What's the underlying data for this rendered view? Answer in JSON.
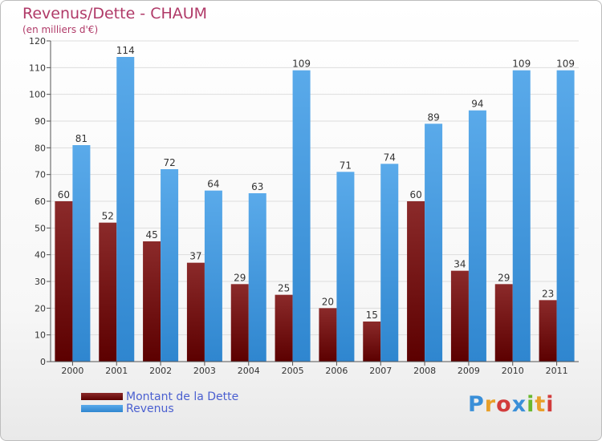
{
  "header": {
    "title": "Revenus/Dette - CHAUM",
    "subtitle": "(en milliers d'€)"
  },
  "legend": {
    "debt_label": "Montant de la Dette",
    "revenue_label": "Revenus"
  },
  "logo": {
    "text": "Proxiti"
  },
  "colors": {
    "debt_top": "#8b2a2a",
    "debt_bottom": "#5c0000",
    "revenue_top": "#5aaaea",
    "revenue_bottom": "#2f86cf",
    "axis_text": "#333333",
    "grid": "#dddddd",
    "title": "#b03a68",
    "legend_text": "#4a5fd0"
  },
  "chart_data": {
    "type": "bar",
    "title": "Revenus/Dette - CHAUM",
    "ylabel": "(en milliers d'€)",
    "xlabel": "",
    "ylim": [
      0,
      120
    ],
    "yticks": [
      0,
      10,
      20,
      30,
      40,
      50,
      60,
      70,
      80,
      90,
      100,
      110,
      120
    ],
    "categories": [
      "2000",
      "2001",
      "2002",
      "2003",
      "2004",
      "2005",
      "2006",
      "2007",
      "2008",
      "2009",
      "2010",
      "2011"
    ],
    "series": [
      {
        "name": "Montant de la Dette",
        "values": [
          60,
          52,
          45,
          37,
          29,
          25,
          20,
          15,
          60,
          34,
          29,
          23
        ]
      },
      {
        "name": "Revenus",
        "values": [
          81,
          114,
          72,
          64,
          63,
          109,
          71,
          74,
          89,
          94,
          109,
          109
        ]
      }
    ],
    "grid": true,
    "legend_position": "bottom-left"
  }
}
